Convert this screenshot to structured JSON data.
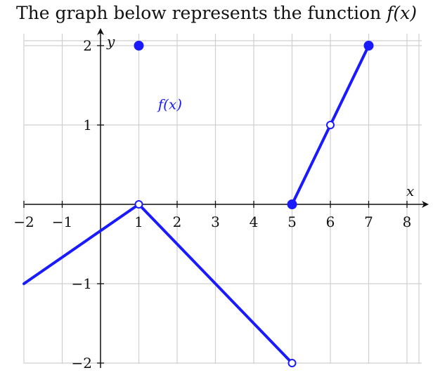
{
  "title": {
    "text": "The graph below represents the function",
    "function_name": "f(x)"
  },
  "chart_data": {
    "type": "line",
    "xlabel": "x",
    "ylabel": "y",
    "xlim": [
      -2,
      8
    ],
    "ylim": [
      -2,
      2
    ],
    "grid": true,
    "x_ticks": [
      -2,
      -1,
      1,
      2,
      3,
      4,
      5,
      6,
      7,
      8
    ],
    "x_tick_labels": [
      "−2",
      "−1",
      "1",
      "2",
      "3",
      "4",
      "5",
      "6",
      "7",
      "8"
    ],
    "y_ticks": [
      -2,
      -1,
      1,
      2
    ],
    "y_tick_labels": [
      "−2",
      "−1",
      "1",
      "2"
    ],
    "series": [
      {
        "name": "f(x)",
        "color": "#1a1aff",
        "segments": [
          {
            "x": [
              -2,
              1
            ],
            "y": [
              -1,
              0
            ]
          },
          {
            "x": [
              1,
              5
            ],
            "y": [
              0,
              -2
            ]
          },
          {
            "x": [
              5,
              7
            ],
            "y": [
              0,
              2
            ]
          }
        ],
        "points": [
          {
            "x": 1,
            "y": 2,
            "filled": true
          },
          {
            "x": 1,
            "y": 0,
            "filled": false
          },
          {
            "x": 5,
            "y": -2,
            "filled": false
          },
          {
            "x": 5,
            "y": 0,
            "filled": true
          },
          {
            "x": 6,
            "y": 1,
            "filled": false
          },
          {
            "x": 7,
            "y": 2,
            "filled": true
          }
        ]
      }
    ],
    "annotations": [
      {
        "text": "f(x)",
        "x": 1.5,
        "y": 1.2
      }
    ]
  }
}
